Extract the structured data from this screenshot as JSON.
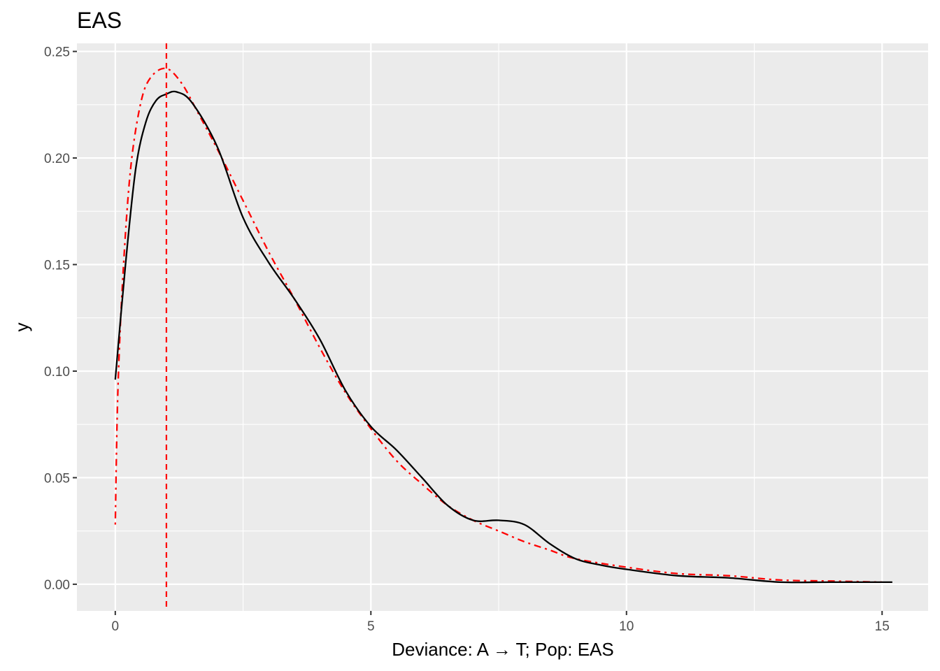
{
  "chart_data": {
    "type": "line",
    "title": "EAS",
    "xlabel": "Deviance: A → T; Pop: EAS",
    "ylabel": "y",
    "xlim": [
      -0.75,
      15.9
    ],
    "ylim": [
      -0.0125,
      0.2538
    ],
    "x_ticks": [
      0,
      5,
      10,
      15
    ],
    "x_tick_labels": [
      "0",
      "5",
      "10",
      "15"
    ],
    "y_ticks": [
      0.0,
      0.05,
      0.1,
      0.15,
      0.2,
      0.25
    ],
    "y_tick_labels": [
      "0.00",
      "0.05",
      "0.10",
      "0.15",
      "0.20",
      "0.25"
    ],
    "grid": true,
    "background": "#ebebeb",
    "series": [
      {
        "style": "solid",
        "color": "#000000",
        "x": [
          0.0,
          0.2,
          0.4,
          0.6,
          0.8,
          1.0,
          1.2,
          1.5,
          2.0,
          2.5,
          3.0,
          3.5,
          4.0,
          4.5,
          5.0,
          5.5,
          6.0,
          6.5,
          7.0,
          7.5,
          8.0,
          8.5,
          9.0,
          9.5,
          10.0,
          11.0,
          12.0,
          13.0,
          14.0,
          15.2
        ],
        "y": [
          0.096,
          0.15,
          0.195,
          0.217,
          0.227,
          0.23,
          0.231,
          0.226,
          0.205,
          0.172,
          0.151,
          0.134,
          0.115,
          0.091,
          0.074,
          0.063,
          0.05,
          0.037,
          0.03,
          0.03,
          0.028,
          0.019,
          0.012,
          0.009,
          0.007,
          0.004,
          0.003,
          0.001,
          0.001,
          0.001
        ]
      },
      {
        "style": "dotdash",
        "color": "#ff0000",
        "x": [
          0.0,
          0.05,
          0.15,
          0.3,
          0.5,
          0.7,
          1.0,
          1.3,
          1.6,
          2.0,
          2.5,
          3.0,
          3.5,
          4.0,
          4.5,
          5.0,
          5.5,
          6.0,
          6.5,
          7.0,
          7.5,
          8.0,
          8.5,
          9.0,
          10.0,
          11.0,
          12.0,
          13.0,
          14.0,
          15.0
        ],
        "y": [
          0.028,
          0.09,
          0.145,
          0.195,
          0.226,
          0.238,
          0.242,
          0.235,
          0.222,
          0.204,
          0.18,
          0.156,
          0.134,
          0.111,
          0.09,
          0.073,
          0.058,
          0.047,
          0.037,
          0.03,
          0.025,
          0.02,
          0.016,
          0.012,
          0.008,
          0.005,
          0.004,
          0.002,
          0.0015,
          0.001
        ]
      }
    ],
    "vline": {
      "x": 1.0,
      "style": "dashed",
      "color": "#ff0000"
    }
  }
}
